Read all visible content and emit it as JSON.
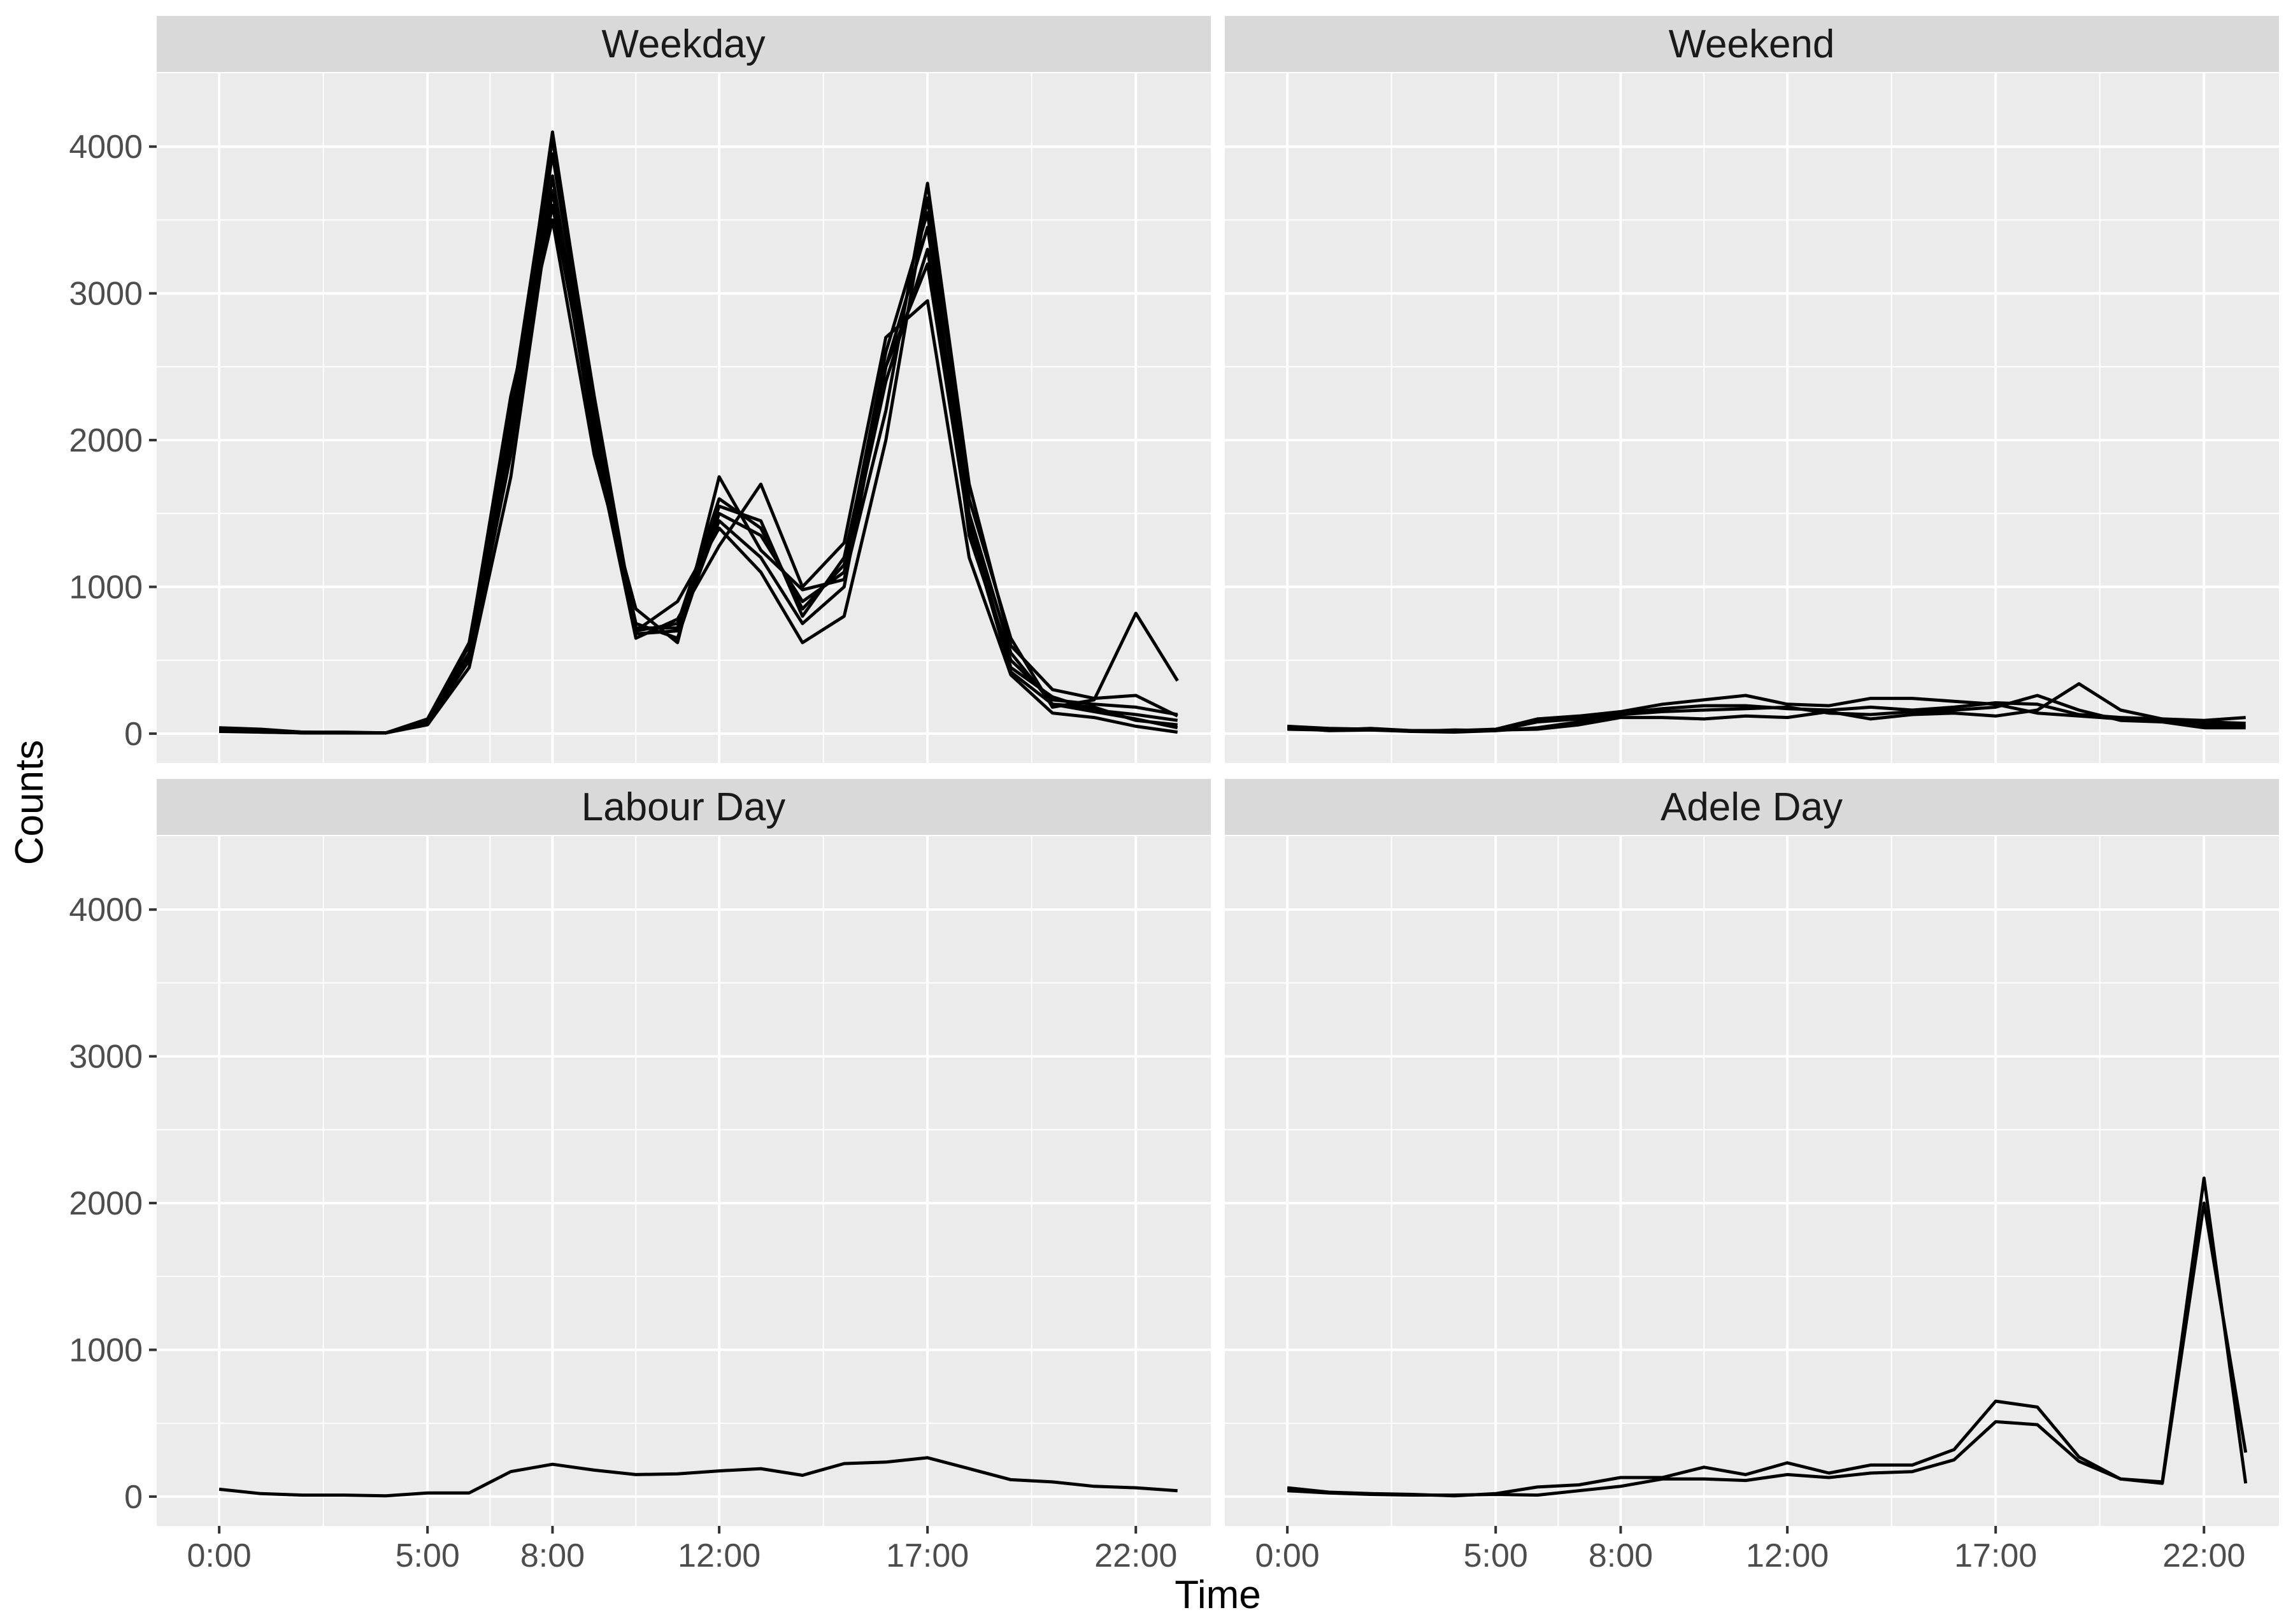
{
  "chart_data": {
    "type": "line",
    "xlabel": "Time",
    "ylabel": "Counts",
    "xlim": [
      -1.5,
      23.8
    ],
    "ylim": [
      -200,
      4500
    ],
    "x_ticks": [
      {
        "value": 0,
        "label": "0:00"
      },
      {
        "value": 5,
        "label": "5:00"
      },
      {
        "value": 8,
        "label": "8:00"
      },
      {
        "value": 12,
        "label": "12:00"
      },
      {
        "value": 17,
        "label": "17:00"
      },
      {
        "value": 22,
        "label": "22:00"
      }
    ],
    "y_ticks": [
      0,
      1000,
      2000,
      3000,
      4000
    ],
    "grid": true,
    "panels": [
      {
        "title": "Weekday",
        "series": [
          {
            "x": [
              0,
              1,
              2,
              3,
              4,
              5,
              6,
              7,
              8,
              9,
              10,
              11,
              12,
              13,
              14,
              15,
              16,
              17,
              18,
              19,
              20,
              21,
              22,
              23
            ],
            "values": [
              30,
              25,
              10,
              10,
              5,
              80,
              550,
              2100,
              4100,
              2250,
              700,
              750,
              1600,
              1400,
              850,
              1150,
              2600,
              3550,
              1350,
              500,
              230,
              200,
              180,
              130
            ]
          },
          {
            "x": [
              0,
              1,
              2,
              3,
              4,
              5,
              6,
              7,
              8,
              9,
              10,
              11,
              12,
              13,
              14,
              15,
              16,
              17,
              18,
              19,
              20,
              21,
              22,
              23
            ],
            "values": [
              20,
              10,
              5,
              5,
              5,
              70,
              500,
              1900,
              3800,
              2050,
              750,
              650,
              1500,
              1350,
              900,
              1100,
              2400,
              3300,
              1450,
              450,
              250,
              160,
              130,
              90
            ]
          },
          {
            "x": [
              0,
              1,
              2,
              3,
              4,
              5,
              6,
              7,
              8,
              9,
              10,
              11,
              12,
              13,
              14,
              15,
              16,
              17,
              18,
              19,
              20,
              21,
              22,
              23
            ],
            "values": [
              25,
              15,
              5,
              5,
              5,
              80,
              550,
              2000,
              3950,
              2150,
              720,
              720,
              1550,
              1450,
              800,
              1200,
              2500,
              3450,
              1500,
              550,
              200,
              180,
              90,
              60
            ]
          },
          {
            "x": [
              0,
              1,
              2,
              3,
              4,
              5,
              6,
              7,
              8,
              9,
              10,
              11,
              12,
              13,
              14,
              15,
              16,
              17,
              18,
              19,
              20,
              21,
              22,
              23
            ],
            "values": [
              40,
              30,
              10,
              5,
              5,
              90,
              600,
              2300,
              3500,
              1900,
              850,
              620,
              1750,
              1250,
              980,
              1050,
              2200,
              3750,
              1700,
              600,
              300,
              240,
              260,
              120
            ]
          },
          {
            "x": [
              0,
              1,
              2,
              3,
              4,
              5,
              6,
              7,
              8,
              9,
              10,
              11,
              12,
              13,
              14,
              15,
              16,
              17,
              18,
              19,
              20,
              21,
              22,
              23
            ],
            "values": [
              15,
              10,
              5,
              5,
              5,
              60,
              450,
              1750,
              3700,
              2000,
              650,
              780,
              1280,
              1700,
              1000,
              1300,
              2700,
              2950,
              1200,
              400,
              140,
              110,
              50,
              10
            ]
          },
          {
            "x": [
              0,
              1,
              2,
              3,
              4,
              5,
              6,
              7,
              8,
              9,
              10,
              11,
              12,
              13,
              14,
              15,
              16,
              17,
              18,
              19,
              20,
              21,
              22,
              23
            ],
            "values": [
              30,
              20,
              10,
              5,
              5,
              100,
              620,
              2200,
              4050,
              2300,
              700,
              900,
              1400,
              1100,
              620,
              800,
              2000,
              3650,
              1600,
              650,
              180,
              230,
              820,
              360
            ]
          },
          {
            "x": [
              0,
              1,
              2,
              3,
              4,
              5,
              6,
              7,
              8,
              9,
              10,
              11,
              12,
              13,
              14,
              15,
              16,
              17,
              18,
              19,
              20,
              21,
              22,
              23
            ],
            "values": [
              20,
              15,
              5,
              5,
              5,
              75,
              520,
              2050,
              3600,
              2100,
              680,
              700,
              1450,
              1200,
              750,
              1000,
              2500,
              3200,
              1400,
              420,
              200,
              150,
              100,
              40
            ]
          }
        ]
      },
      {
        "title": "Weekend",
        "series": [
          {
            "x": [
              0,
              1,
              2,
              3,
              4,
              5,
              6,
              7,
              8,
              9,
              10,
              11,
              12,
              13,
              14,
              15,
              16,
              17,
              18,
              19,
              20,
              21,
              22,
              23
            ],
            "values": [
              50,
              35,
              30,
              20,
              20,
              30,
              100,
              120,
              150,
              200,
              230,
              260,
              200,
              190,
              240,
              240,
              220,
              200,
              140,
              120,
              100,
              80,
              80,
              70
            ]
          },
          {
            "x": [
              0,
              1,
              2,
              3,
              4,
              5,
              6,
              7,
              8,
              9,
              10,
              11,
              12,
              13,
              14,
              15,
              16,
              17,
              18,
              19,
              20,
              21,
              22,
              23
            ],
            "values": [
              40,
              20,
              25,
              15,
              10,
              20,
              40,
              80,
              130,
              150,
              160,
              170,
              180,
              140,
              130,
              150,
              160,
              180,
              260,
              160,
              90,
              80,
              40,
              40
            ]
          },
          {
            "x": [
              0,
              1,
              2,
              3,
              4,
              5,
              6,
              7,
              8,
              9,
              10,
              11,
              12,
              13,
              14,
              15,
              16,
              17,
              18,
              19,
              20,
              21,
              22,
              23
            ],
            "values": [
              30,
              25,
              35,
              20,
              20,
              25,
              30,
              60,
              110,
              110,
              100,
              120,
              110,
              150,
              100,
              130,
              140,
              120,
              160,
              340,
              160,
              100,
              90,
              110
            ]
          },
          {
            "x": [
              0,
              1,
              2,
              3,
              4,
              5,
              6,
              7,
              8,
              9,
              10,
              11,
              12,
              13,
              14,
              15,
              16,
              17,
              18,
              19,
              20,
              21,
              22,
              23
            ],
            "values": [
              45,
              30,
              30,
              15,
              25,
              20,
              80,
              100,
              140,
              170,
              190,
              190,
              170,
              160,
              180,
              160,
              180,
              210,
              200,
              130,
              110,
              100,
              60,
              50
            ]
          }
        ]
      },
      {
        "title": "Labour Day",
        "series": [
          {
            "x": [
              0,
              1,
              2,
              3,
              4,
              5,
              6,
              7,
              8,
              9,
              10,
              11,
              12,
              13,
              14,
              15,
              16,
              17,
              18,
              19,
              20,
              21,
              22,
              23
            ],
            "values": [
              50,
              20,
              10,
              10,
              5,
              25,
              25,
              170,
              220,
              180,
              150,
              155,
              175,
              190,
              145,
              225,
              235,
              265,
              190,
              115,
              100,
              70,
              60,
              40
            ]
          }
        ]
      },
      {
        "title": "Adele Day",
        "series": [
          {
            "x": [
              0,
              1,
              2,
              3,
              4,
              5,
              6,
              7,
              8,
              9,
              10,
              11,
              12,
              13,
              14,
              15,
              16,
              17,
              18,
              19,
              20,
              21,
              22,
              23
            ],
            "values": [
              60,
              30,
              20,
              15,
              5,
              20,
              65,
              80,
              130,
              130,
              200,
              150,
              230,
              160,
              215,
              215,
              320,
              650,
              610,
              270,
              120,
              100,
              2170,
              90
            ]
          },
          {
            "x": [
              0,
              1,
              2,
              3,
              4,
              5,
              6,
              7,
              8,
              9,
              10,
              11,
              12,
              13,
              14,
              15,
              16,
              17,
              18,
              19,
              20,
              21,
              22,
              23
            ],
            "values": [
              40,
              25,
              15,
              10,
              10,
              15,
              10,
              40,
              70,
              120,
              120,
              110,
              150,
              130,
              160,
              170,
              250,
              510,
              490,
              240,
              120,
              90,
              2000,
              300
            ]
          }
        ]
      }
    ]
  }
}
